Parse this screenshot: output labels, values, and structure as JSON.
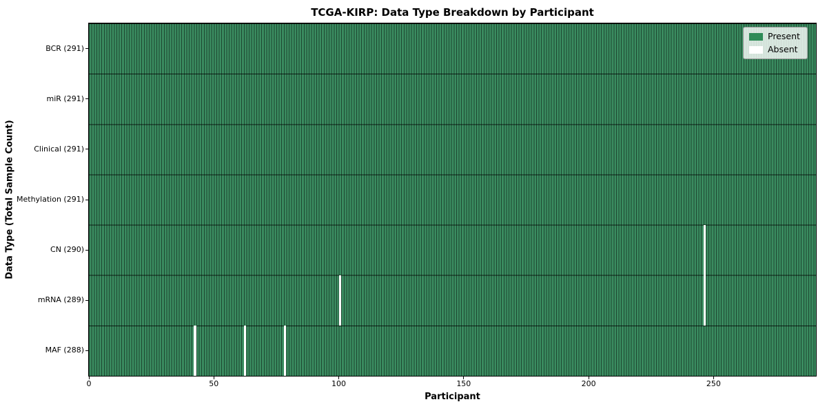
{
  "figure": {
    "title": "TCGA-KIRP: Data Type Breakdown by Participant",
    "xlabel": "Participant",
    "ylabel": "Data Type (Total Sample Count)"
  },
  "colors": {
    "present": "#3a8c60",
    "absent": "#ffffff",
    "bar_edge": "rgba(0,0,0,0.5)",
    "row_separator": "rgba(0,0,0,0.78)",
    "legend_background": "rgba(255,255,255,0.8)",
    "legend_border": "#9a9a9a"
  },
  "chart_data": {
    "type": "heatmap",
    "title": "TCGA-KIRP: Data Type Breakdown by Participant",
    "xlabel": "Participant",
    "ylabel": "Data Type (Total Sample Count)",
    "xlim": [
      0,
      291
    ],
    "x_ticks": [
      0,
      50,
      100,
      150,
      200,
      250
    ],
    "n_participants": 291,
    "grid": false,
    "legend_position": "upper right",
    "legend": [
      {
        "label": "Present",
        "color": "#2e8b57"
      },
      {
        "label": "Absent",
        "color": "#ffffff"
      }
    ],
    "rows": [
      {
        "label": "BCR (291)",
        "data_type": "BCR",
        "total_sample_count": 291,
        "absent_participants": []
      },
      {
        "label": "miR (291)",
        "data_type": "miR",
        "total_sample_count": 291,
        "absent_participants": []
      },
      {
        "label": "Clinical (291)",
        "data_type": "Clinical",
        "total_sample_count": 291,
        "absent_participants": []
      },
      {
        "label": "Methylation (291)",
        "data_type": "Methylation",
        "total_sample_count": 291,
        "absent_participants": []
      },
      {
        "label": "CN (290)",
        "data_type": "CN",
        "total_sample_count": 290,
        "absent_participants": [
          246
        ]
      },
      {
        "label": "mRNA (289)",
        "data_type": "mRNA",
        "total_sample_count": 289,
        "absent_participants": [
          100,
          246
        ]
      },
      {
        "label": "MAF (288)",
        "data_type": "MAF",
        "total_sample_count": 288,
        "absent_participants": [
          42,
          62,
          78
        ]
      }
    ],
    "cell_meaning": "green cell = data type present for participant; white gap = absent"
  }
}
